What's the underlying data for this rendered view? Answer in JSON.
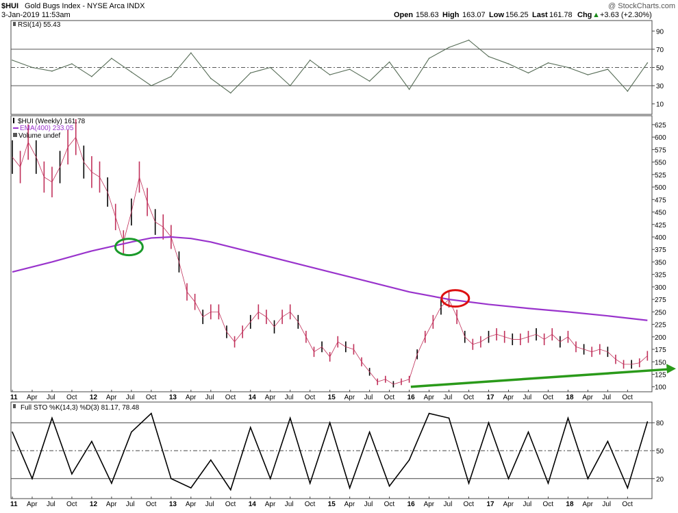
{
  "header": {
    "symbol": "$HUI",
    "name": "Gold Bugs Index - NYSE Arca  INDX",
    "date_time": "3-Jan-2019 11:53am",
    "watermark": "@ StockCharts.com",
    "quote": {
      "open_label": "Open",
      "open": "158.63",
      "high_label": "High",
      "high": "163.07",
      "low_label": "Low",
      "low": "156.25",
      "last_label": "Last",
      "last": "161.78",
      "chg_label": "Chg",
      "chg": "+3.63 (+2.30%)",
      "chg_arrow": "▲"
    }
  },
  "chart_data": [
    {
      "type": "line",
      "panel": "rsi",
      "legend": "RSI(14) 55.43",
      "ylim": [
        0,
        100
      ],
      "y_ticks": [
        10,
        30,
        50,
        70,
        90
      ],
      "reference_lines": [
        30,
        50,
        70
      ],
      "x": [
        0,
        0.25,
        0.5,
        0.75,
        1.0,
        1.25,
        1.5,
        1.75,
        2.0,
        2.25,
        2.5,
        2.75,
        3.0,
        3.25,
        3.5,
        3.75,
        4.0,
        4.25,
        4.5,
        4.75,
        5.0,
        5.25,
        5.5,
        5.75,
        6.0,
        6.25,
        6.5,
        6.75,
        7.0,
        7.25,
        7.5,
        7.75,
        8.0
      ],
      "values": [
        58,
        50,
        46,
        54,
        40,
        60,
        45,
        30,
        40,
        66,
        38,
        22,
        44,
        50,
        30,
        58,
        42,
        48,
        35,
        56,
        26,
        60,
        72,
        80,
        62,
        54,
        44,
        55,
        50,
        42,
        48,
        24,
        55
      ]
    },
    {
      "type": "line",
      "panel": "price",
      "legend_price": "$HUI (Weekly) 161.78",
      "legend_ema": "EMA(400) 233.05",
      "legend_volume": "Volume undef",
      "ylim": [
        90,
        640
      ],
      "y_ticks": [
        100,
        125,
        150,
        175,
        200,
        225,
        250,
        275,
        300,
        325,
        350,
        375,
        400,
        425,
        450,
        475,
        500,
        525,
        550,
        575,
        600,
        625
      ],
      "x_labels": [
        {
          "t": 0.0,
          "label": "11"
        },
        {
          "t": 0.25,
          "label": "Apr"
        },
        {
          "t": 0.5,
          "label": "Jul"
        },
        {
          "t": 0.75,
          "label": "Oct"
        },
        {
          "t": 1.0,
          "label": "12"
        },
        {
          "t": 1.25,
          "label": "Apr"
        },
        {
          "t": 1.5,
          "label": "Jul"
        },
        {
          "t": 1.75,
          "label": "Oct"
        },
        {
          "t": 2.0,
          "label": "13"
        },
        {
          "t": 2.25,
          "label": "Apr"
        },
        {
          "t": 2.5,
          "label": "Jul"
        },
        {
          "t": 2.75,
          "label": "Oct"
        },
        {
          "t": 3.0,
          "label": "14"
        },
        {
          "t": 3.25,
          "label": "Apr"
        },
        {
          "t": 3.5,
          "label": "Jul"
        },
        {
          "t": 3.75,
          "label": "Oct"
        },
        {
          "t": 4.0,
          "label": "15"
        },
        {
          "t": 4.25,
          "label": "Apr"
        },
        {
          "t": 4.5,
          "label": "Jul"
        },
        {
          "t": 4.75,
          "label": "Oct"
        },
        {
          "t": 5.0,
          "label": "16"
        },
        {
          "t": 5.25,
          "label": "Apr"
        },
        {
          "t": 5.5,
          "label": "Jul"
        },
        {
          "t": 5.75,
          "label": "Oct"
        },
        {
          "t": 6.0,
          "label": "17"
        },
        {
          "t": 6.25,
          "label": "Apr"
        },
        {
          "t": 6.5,
          "label": "Jul"
        },
        {
          "t": 6.75,
          "label": "Oct"
        },
        {
          "t": 7.0,
          "label": "18"
        },
        {
          "t": 7.25,
          "label": "Apr"
        },
        {
          "t": 7.5,
          "label": "Jul"
        },
        {
          "t": 7.75,
          "label": "Oct"
        }
      ],
      "series": [
        {
          "name": "$HUI (Weekly)",
          "color": "#c0305a",
          "x": [
            0,
            0.1,
            0.2,
            0.3,
            0.4,
            0.5,
            0.6,
            0.7,
            0.8,
            0.9,
            1.0,
            1.1,
            1.2,
            1.3,
            1.4,
            1.5,
            1.6,
            1.7,
            1.8,
            1.9,
            2.0,
            2.1,
            2.2,
            2.3,
            2.4,
            2.5,
            2.6,
            2.7,
            2.8,
            2.9,
            3.0,
            3.1,
            3.2,
            3.3,
            3.4,
            3.5,
            3.6,
            3.7,
            3.8,
            3.9,
            4.0,
            4.1,
            4.2,
            4.3,
            4.4,
            4.5,
            4.6,
            4.7,
            4.8,
            4.9,
            5.0,
            5.1,
            5.2,
            5.3,
            5.4,
            5.5,
            5.6,
            5.7,
            5.8,
            5.9,
            6.0,
            6.1,
            6.2,
            6.3,
            6.4,
            6.5,
            6.6,
            6.7,
            6.8,
            6.9,
            7.0,
            7.1,
            7.2,
            7.3,
            7.4,
            7.5,
            7.6,
            7.7,
            7.8,
            7.9,
            8.0
          ],
          "values": [
            560,
            540,
            590,
            560,
            520,
            510,
            540,
            580,
            600,
            550,
            530,
            520,
            490,
            440,
            390,
            450,
            520,
            470,
            430,
            420,
            400,
            350,
            290,
            270,
            240,
            250,
            250,
            210,
            190,
            210,
            230,
            250,
            240,
            220,
            240,
            250,
            230,
            200,
            170,
            180,
            160,
            190,
            180,
            175,
            150,
            130,
            110,
            115,
            105,
            110,
            115,
            165,
            200,
            230,
            260,
            275,
            240,
            200,
            185,
            190,
            200,
            205,
            200,
            195,
            195,
            200,
            205,
            195,
            205,
            190,
            200,
            180,
            175,
            170,
            175,
            170,
            155,
            145,
            145,
            148,
            162
          ]
        },
        {
          "name": "EMA(400)",
          "color": "#9933cc",
          "x": [
            0,
            0.5,
            1.0,
            1.5,
            1.75,
            2.0,
            2.25,
            2.5,
            3.0,
            3.5,
            4.0,
            4.5,
            5.0,
            5.5,
            6.0,
            6.5,
            7.0,
            7.5,
            8.0
          ],
          "values": [
            330,
            350,
            372,
            390,
            398,
            400,
            397,
            390,
            370,
            350,
            330,
            310,
            290,
            275,
            265,
            257,
            250,
            242,
            233
          ]
        }
      ],
      "annotations": [
        {
          "kind": "circle",
          "color": "#1a9a2a",
          "x": 1.47,
          "y": 380
        },
        {
          "kind": "circle",
          "color": "#dd1111",
          "x": 5.58,
          "y": 277
        },
        {
          "kind": "trendline",
          "color": "#2a9a1a",
          "x1": 5.02,
          "y1": 100,
          "x2": 8.35,
          "y2": 135
        }
      ]
    },
    {
      "type": "line",
      "panel": "stochastic",
      "legend": "Full STO %K(14,3) %D(3) 81.17, 78.48",
      "ylim": [
        0,
        100
      ],
      "y_ticks": [
        20,
        50,
        80
      ],
      "reference_lines": [
        20,
        50,
        80
      ],
      "x": [
        0,
        0.25,
        0.5,
        0.75,
        1.0,
        1.25,
        1.5,
        1.75,
        2.0,
        2.25,
        2.5,
        2.75,
        3.0,
        3.25,
        3.5,
        3.75,
        4.0,
        4.25,
        4.5,
        4.75,
        5.0,
        5.25,
        5.5,
        5.75,
        6.0,
        6.25,
        6.5,
        6.75,
        7.0,
        7.25,
        7.5,
        7.75,
        8.0
      ],
      "values": [
        70,
        20,
        85,
        25,
        60,
        15,
        70,
        90,
        20,
        10,
        40,
        8,
        75,
        20,
        85,
        15,
        80,
        10,
        70,
        12,
        40,
        90,
        85,
        15,
        80,
        20,
        70,
        15,
        85,
        20,
        60,
        10,
        81
      ]
    }
  ]
}
